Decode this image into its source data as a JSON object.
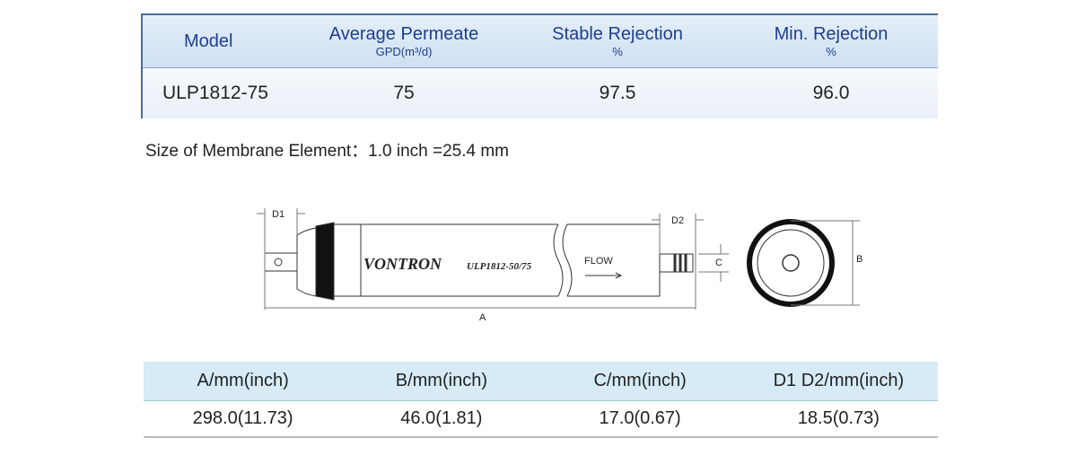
{
  "spec_table": {
    "headers": [
      {
        "title": "Model"
      },
      {
        "title": "Average Permeate",
        "unit": "GPD(m³/d)"
      },
      {
        "title": "Stable Rejection",
        "unit": "%"
      },
      {
        "title": "Min. Rejection",
        "unit": "%"
      }
    ],
    "row": [
      "ULP1812-75",
      "75",
      "97.5",
      "96.0"
    ]
  },
  "note": "Size of Membrane Element：1.0 inch =25.4 mm",
  "diagram": {
    "brand": "VONTRON",
    "model": "ULP1812-50/75",
    "flow": "FLOW",
    "labels": {
      "a": "A",
      "b": "B",
      "c": "C",
      "d1": "D1",
      "d2": "D2"
    }
  },
  "dim_table": {
    "headers": [
      "A/mm(inch)",
      "B/mm(inch)",
      "C/mm(inch)",
      "D1 D2/mm(inch)"
    ],
    "row": [
      "298.0(11.73)",
      "46.0(1.81)",
      "17.0(0.67)",
      "18.5(0.73)"
    ]
  }
}
